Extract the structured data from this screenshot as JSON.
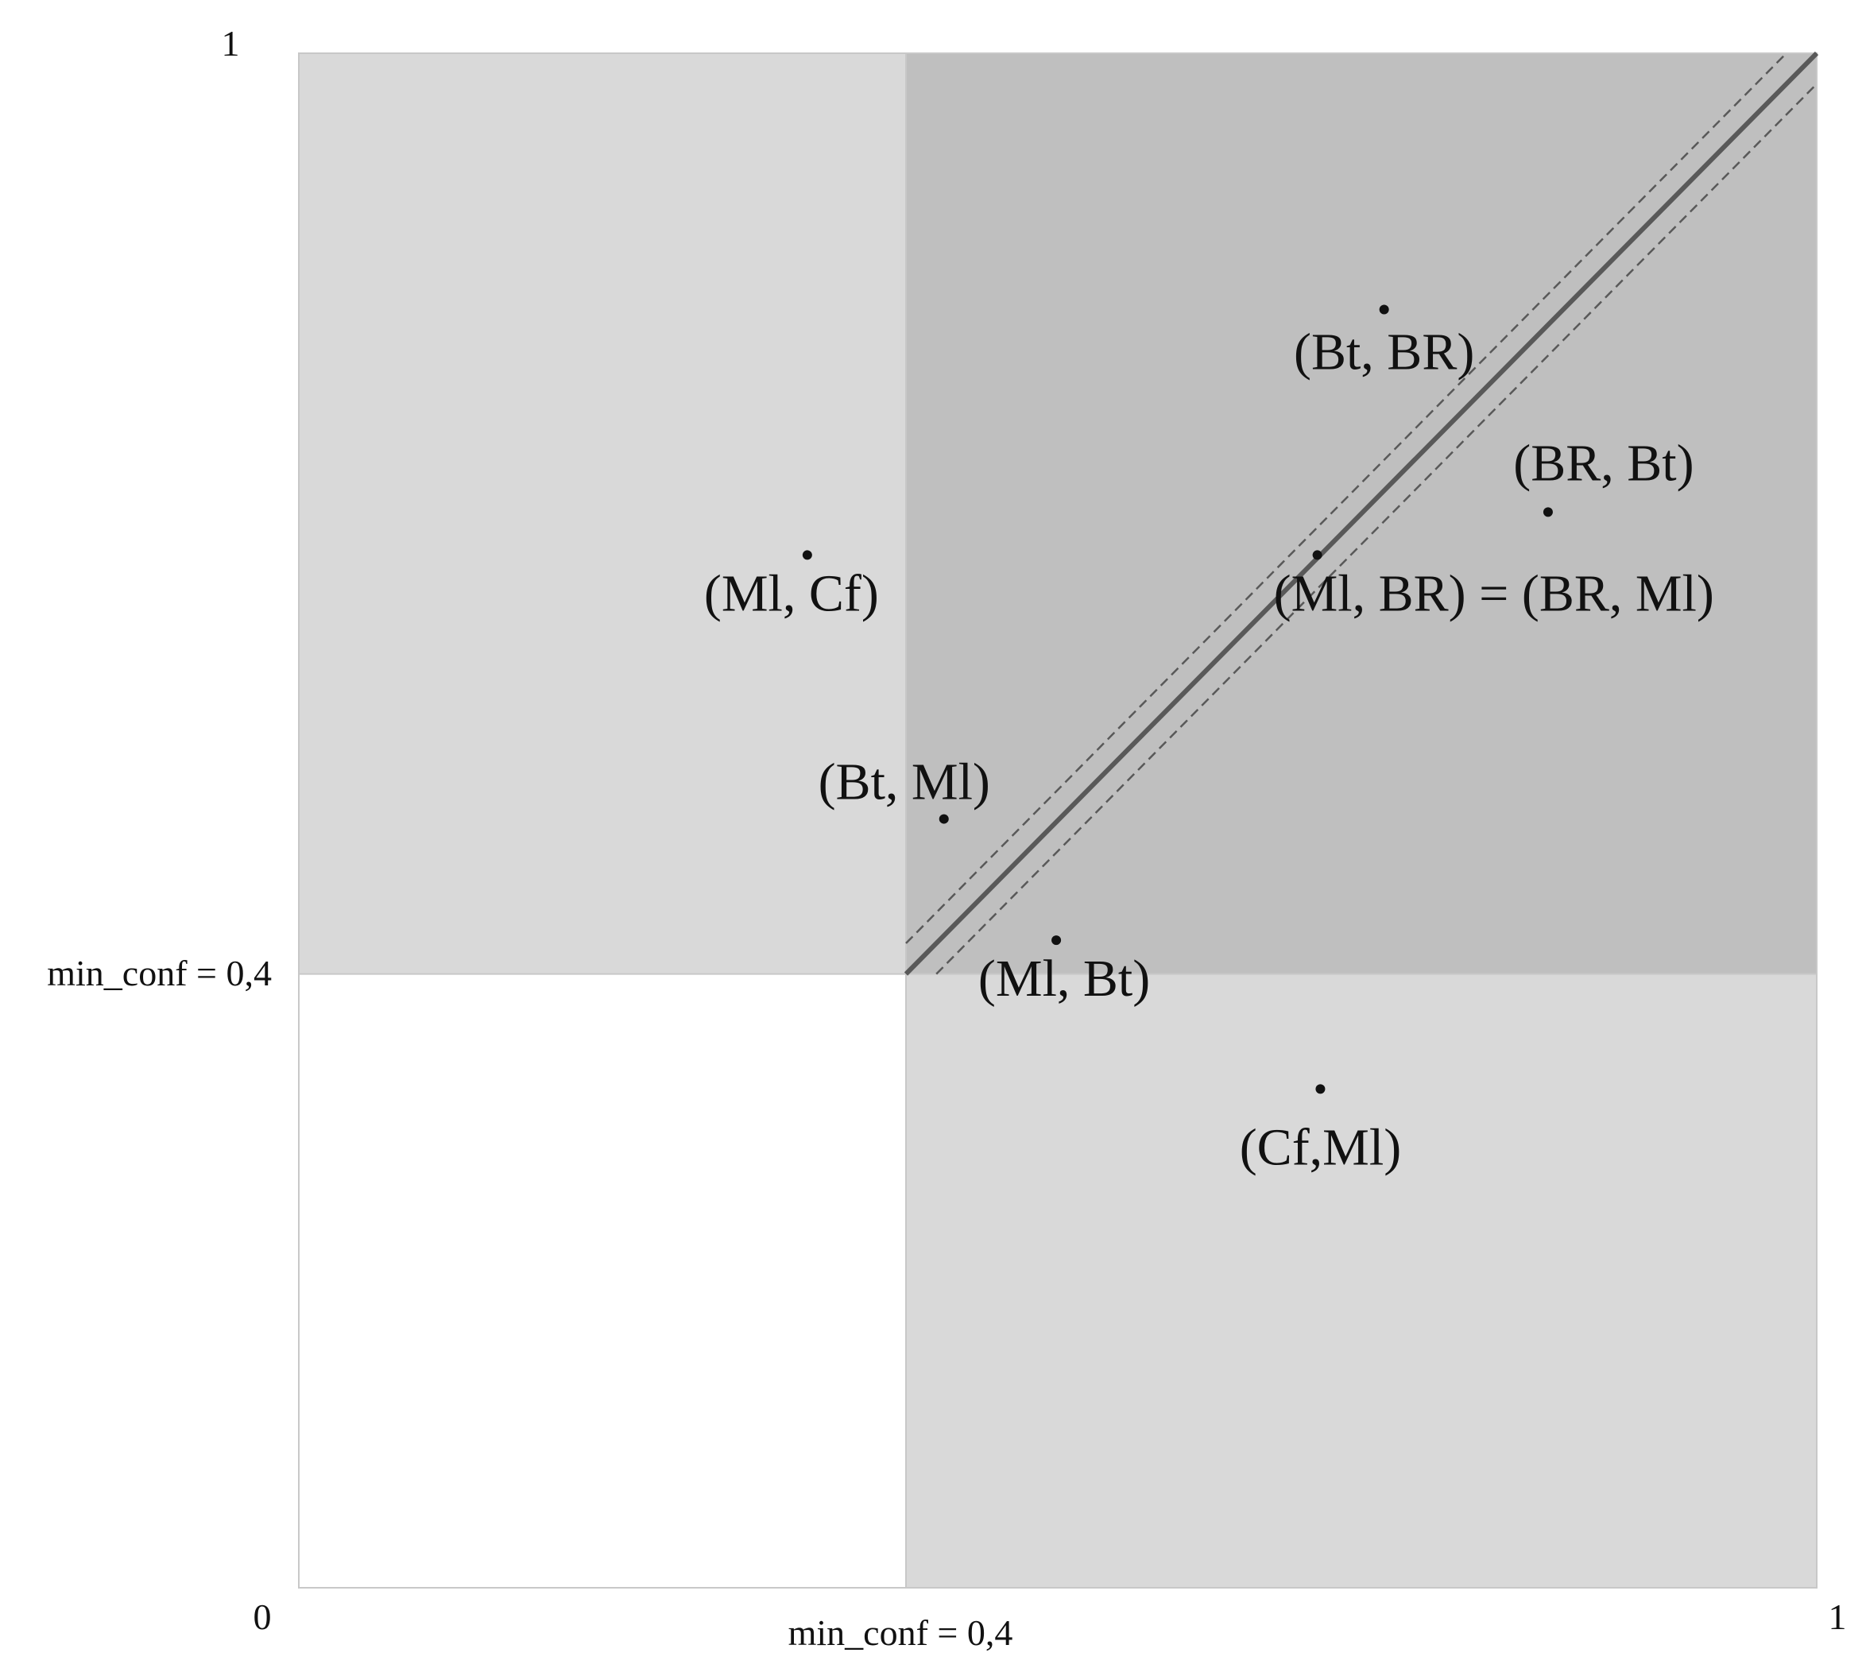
{
  "chart_data": {
    "type": "scatter",
    "title": "",
    "xlabel": "",
    "ylabel": "",
    "xlim": [
      0,
      1
    ],
    "ylim": [
      0,
      1
    ],
    "grid": false,
    "x_ticks": [
      "0",
      "1"
    ],
    "y_ticks": [
      "0",
      "1"
    ],
    "threshold": 0.4,
    "threshold_x_label": "min_conf = 0,4",
    "threshold_y_label": "min_conf = 0,4",
    "diagonal": {
      "from": [
        0.4,
        0.4
      ],
      "to": [
        1,
        1
      ],
      "band_offset": 0.02
    },
    "points": [
      {
        "label": "(Bt, BR)",
        "x": 0.715,
        "y": 0.833
      },
      {
        "label": "(BR, Bt)",
        "x": 0.823,
        "y": 0.701
      },
      {
        "label": "(Ml, Cf)",
        "x": 0.335,
        "y": 0.673
      },
      {
        "label": "(Ml, BR) = (BR, Ml)",
        "x": 0.671,
        "y": 0.673
      },
      {
        "label": "(Bt, Ml)",
        "x": 0.425,
        "y": 0.501
      },
      {
        "label": "(Ml, Bt)",
        "x": 0.499,
        "y": 0.422
      },
      {
        "label": "(Cf,Ml)",
        "x": 0.673,
        "y": 0.325
      }
    ],
    "colors": {
      "light_region": "#d9d9d9",
      "dark_region": "#bfbfbf",
      "border": "#c8c8c8",
      "diagonal": "#595959",
      "point": "#111111"
    }
  }
}
